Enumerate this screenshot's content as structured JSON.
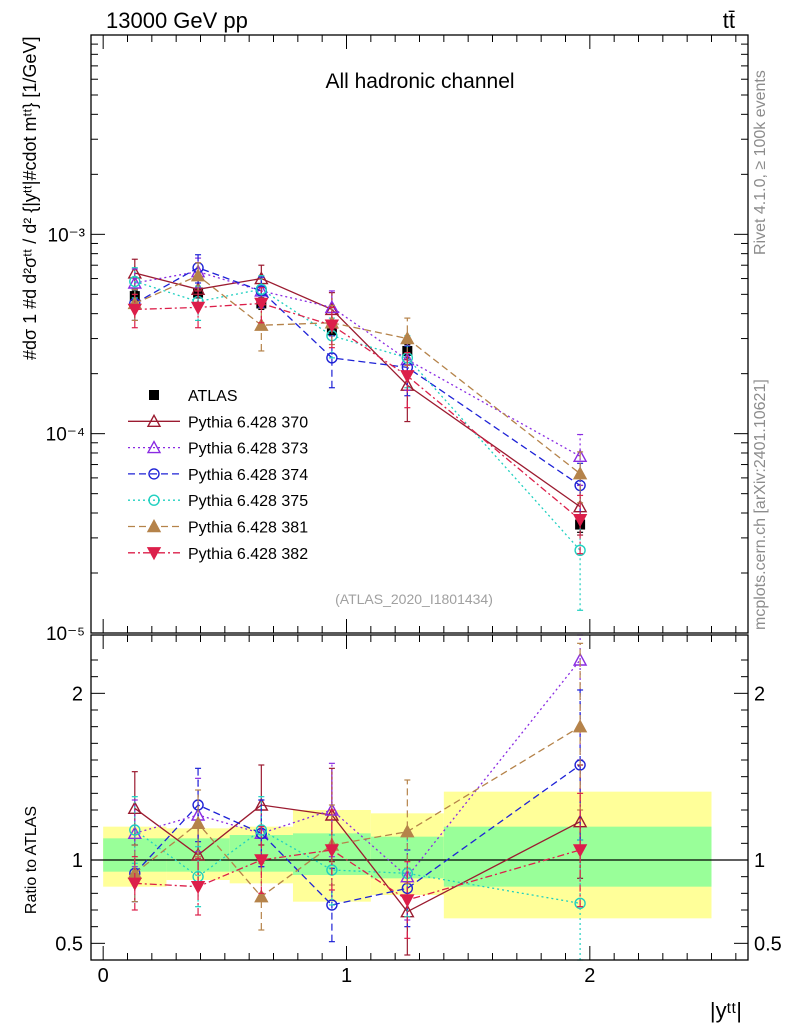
{
  "header": {
    "energy_label": "13000 GeV pp",
    "process_label": "tt̄"
  },
  "side_labels": {
    "rivet": "Rivet 4.1.0, ≥ 100k events",
    "mcplots": "mcplots.cern.ch [arXiv:2401.10621]"
  },
  "colors": {
    "ATLAS": "#000000",
    "Pythia 6.428 370": "#9b1b30",
    "Pythia 6.428 373": "#8a2be2",
    "Pythia 6.428 374": "#1e22d6",
    "Pythia 6.428 375": "#20d0c0",
    "Pythia 6.428 381": "#b5834a",
    "Pythia 6.428 382": "#dc1f4a",
    "band_inner": "#99ff99",
    "band_outer": "#ffff99"
  },
  "chart_data": [
    {
      "type": "scatter",
      "panel": "main",
      "title": "All hadronic channel",
      "watermark": "(ATLAS_2020_I1801434)",
      "ylabel": "#dσ 1 #d d²σᵗᵗ / d² {|yᵗᵗ|#cdot mᵗᵗ} [1/GeV]",
      "yscale": "log",
      "ylim": [
        1e-05,
        0.01
      ],
      "y_ticks": [
        {
          "value": 0.001,
          "label": "10⁻³"
        },
        {
          "value": 0.0001,
          "label": "10⁻⁴"
        },
        {
          "value": 1e-05,
          "label": "10⁻⁵"
        }
      ],
      "xlim": [
        -0.05,
        2.65
      ],
      "x": [
        0.13,
        0.39,
        0.65,
        0.94,
        1.25,
        1.96
      ],
      "bin_edges": [
        0.0,
        0.26,
        0.52,
        0.78,
        1.1,
        1.4,
        2.5
      ],
      "legend": [
        "ATLAS",
        "Pythia 6.428 370",
        "Pythia 6.428 373",
        "Pythia 6.428 374",
        "Pythia 6.428 375",
        "Pythia 6.428 381",
        "Pythia 6.428 382"
      ],
      "series": [
        {
          "name": "ATLAS",
          "values": [
            0.00049,
            0.00051,
            0.00045,
            0.00033,
            0.00026,
            3.5e-05
          ],
          "errors": [
            3e-05,
            3e-05,
            3e-05,
            2e-05,
            2e-05,
            3e-06
          ]
        },
        {
          "name": "Pythia 6.428 370",
          "values": [
            0.00064,
            0.00053,
            0.0006,
            0.00042,
            0.000175,
            4.3e-05
          ],
          "errors": [
            0.00011,
            9e-05,
            0.0001,
            9e-05,
            6e-05,
            1.2e-05
          ]
        },
        {
          "name": "Pythia 6.428 373",
          "values": [
            0.00057,
            0.00065,
            0.00052,
            0.00043,
            0.000235,
            7.7e-05
          ],
          "errors": [
            0.0001,
            0.00011,
            9e-05,
            9e-05,
            7e-05,
            2.2e-05
          ]
        },
        {
          "name": "Pythia 6.428 374",
          "values": [
            0.00045,
            0.00068,
            0.00052,
            0.00024,
            0.000215,
            5.5e-05
          ],
          "errors": [
            8e-05,
            0.00011,
            9e-05,
            7e-05,
            6e-05,
            1.6e-05
          ]
        },
        {
          "name": "Pythia 6.428 375",
          "values": [
            0.00058,
            0.00046,
            0.00053,
            0.00031,
            0.00024,
            2.6e-05
          ],
          "errors": [
            0.0001,
            9e-05,
            9e-05,
            7e-05,
            7e-05,
            1.3e-05
          ]
        },
        {
          "name": "Pythia 6.428 381",
          "values": [
            0.00045,
            0.00062,
            0.00035,
            0.00036,
            0.0003,
            6.3e-05
          ],
          "errors": [
            8e-05,
            0.0001,
            9e-05,
            8e-05,
            8e-05,
            1.8e-05
          ]
        },
        {
          "name": "Pythia 6.428 382",
          "values": [
            0.00042,
            0.00043,
            0.00045,
            0.00035,
            0.000195,
            3.7e-05
          ],
          "errors": [
            8e-05,
            9e-05,
            9e-05,
            8e-05,
            6e-05,
            1.2e-05
          ]
        }
      ]
    },
    {
      "type": "scatter",
      "panel": "ratio",
      "ylabel": "Ratio to ATLAS",
      "xlabel": "|yᵗᵗ|",
      "ylim": [
        0.4,
        2.35
      ],
      "y_ticks": [
        {
          "value": 0.5,
          "label": "0.5"
        },
        {
          "value": 1,
          "label": "1"
        },
        {
          "value": 2,
          "label": "2"
        }
      ],
      "x_ticks": [
        {
          "value": 0,
          "label": "0"
        },
        {
          "value": 1,
          "label": "1"
        },
        {
          "value": 2,
          "label": "2"
        }
      ],
      "xlim": [
        -0.05,
        2.65
      ],
      "x": [
        0.13,
        0.39,
        0.65,
        0.94,
        1.25,
        1.96
      ],
      "bands": {
        "inner_low": [
          0.93,
          0.93,
          0.93,
          0.91,
          0.89,
          0.84
        ],
        "inner_high": [
          1.13,
          1.13,
          1.15,
          1.16,
          1.14,
          1.2
        ],
        "outer_low": [
          0.84,
          0.88,
          0.86,
          0.75,
          0.79,
          0.65
        ],
        "outer_high": [
          1.2,
          1.19,
          1.2,
          1.3,
          1.28,
          1.41
        ]
      },
      "series": [
        {
          "name": "Pythia 6.428 370",
          "values": [
            1.31,
            1.03,
            1.33,
            1.27,
            0.69,
            1.23
          ],
          "errors": [
            0.22,
            0.18,
            0.24,
            0.28,
            0.26,
            0.34
          ]
        },
        {
          "name": "Pythia 6.428 373",
          "values": [
            1.16,
            1.27,
            1.16,
            1.3,
            0.9,
            2.2
          ],
          "errors": [
            0.2,
            0.22,
            0.2,
            0.28,
            0.26,
            0.6
          ]
        },
        {
          "name": "Pythia 6.428 374",
          "values": [
            0.92,
            1.33,
            1.16,
            0.73,
            0.83,
            1.57
          ],
          "errors": [
            0.17,
            0.22,
            0.2,
            0.22,
            0.23,
            0.45
          ]
        },
        {
          "name": "Pythia 6.428 375",
          "values": [
            1.18,
            0.9,
            1.18,
            0.94,
            0.92,
            0.74
          ],
          "errors": [
            0.2,
            0.18,
            0.2,
            0.21,
            0.26,
            0.38
          ]
        },
        {
          "name": "Pythia 6.428 381",
          "values": [
            0.92,
            1.22,
            0.78,
            1.09,
            1.17,
            1.8
          ],
          "errors": [
            0.17,
            0.2,
            0.2,
            0.24,
            0.31,
            0.5
          ]
        },
        {
          "name": "Pythia 6.428 382",
          "values": [
            0.86,
            0.84,
            1.0,
            1.06,
            0.76,
            1.06
          ],
          "errors": [
            0.16,
            0.17,
            0.2,
            0.24,
            0.23,
            0.34
          ]
        }
      ]
    }
  ]
}
